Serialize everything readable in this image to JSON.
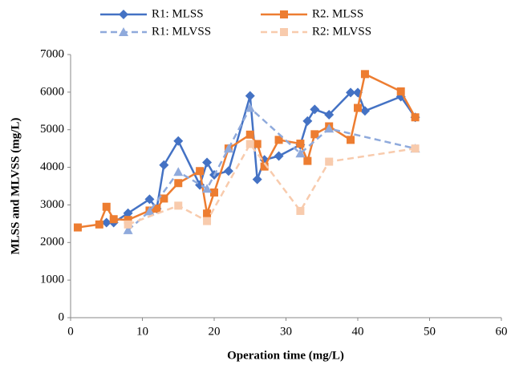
{
  "chart_data": {
    "type": "line",
    "x_label": "Operation time (mg/L)",
    "y_label": "MLSS and MLVSS (mg/L)",
    "xlim": [
      0,
      60
    ],
    "xticks": [
      0,
      10,
      20,
      30,
      40,
      50,
      60
    ],
    "ylim": [
      0,
      7000
    ],
    "yticks": [
      0,
      1000,
      2000,
      3000,
      4000,
      5000,
      6000,
      7000
    ],
    "series": [
      {
        "name": "R1: MLSS",
        "color": "#4472c4",
        "dashed": false,
        "marker": "diamond",
        "x": [
          5,
          6,
          8,
          11,
          12,
          13,
          15,
          18,
          19,
          20,
          22,
          25,
          26,
          27,
          29,
          32,
          33,
          34,
          36,
          39,
          40,
          41,
          46,
          48
        ],
        "values": [
          2530,
          2530,
          2780,
          3150,
          2900,
          4060,
          4700,
          3530,
          4130,
          3800,
          3900,
          5900,
          3680,
          4200,
          4300,
          4600,
          5230,
          5540,
          5400,
          5990,
          5990,
          5500,
          5880,
          5330
        ]
      },
      {
        "name": "R2. MLSS",
        "color": "#ed7d31",
        "dashed": false,
        "marker": "square",
        "x": [
          1,
          4,
          5,
          6,
          8,
          11,
          12,
          13,
          15,
          18,
          19,
          20,
          22,
          25,
          26,
          27,
          29,
          32,
          33,
          34,
          36,
          39,
          40,
          41,
          46,
          48
        ],
        "values": [
          2400,
          2480,
          2950,
          2620,
          2600,
          2850,
          2900,
          3170,
          3580,
          3900,
          2770,
          3330,
          4500,
          4870,
          4620,
          4020,
          4730,
          4630,
          4170,
          4880,
          5090,
          4730,
          5580,
          6480,
          6020,
          5330
        ]
      },
      {
        "name": "R1: MLVSS",
        "color": "#8faadc",
        "dashed": true,
        "marker": "triangle",
        "x": [
          8,
          11,
          15,
          19,
          22,
          25,
          32,
          36,
          48
        ],
        "values": [
          2330,
          2830,
          3880,
          3430,
          4500,
          5580,
          4370,
          5030,
          4500
        ]
      },
      {
        "name": "R2: MLVSS",
        "color": "#f8cbad",
        "dashed": true,
        "marker": "square",
        "x": [
          8,
          15,
          19,
          25,
          32,
          36,
          48
        ],
        "values": [
          2480,
          2980,
          2570,
          4620,
          2840,
          4150,
          4500
        ]
      }
    ]
  }
}
